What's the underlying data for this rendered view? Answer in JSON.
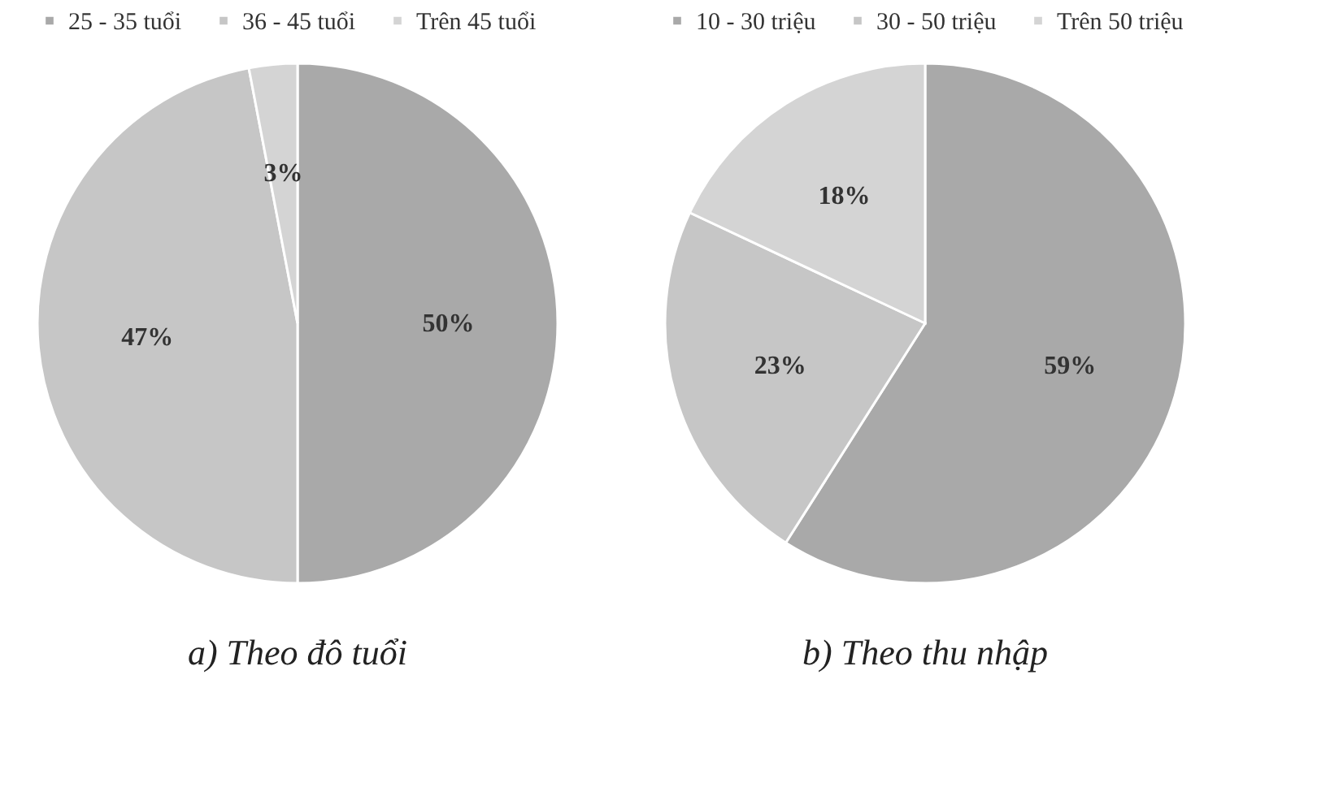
{
  "chart_data": [
    {
      "type": "pie",
      "title": "a) Theo đô tuổi",
      "categories": [
        "25 - 35 tuổi",
        "36 - 45 tuổi",
        "Trên 45 tuổi"
      ],
      "values": [
        50,
        47,
        3
      ],
      "colors": [
        "#a9a9a9",
        "#c6c6c6",
        "#d4d4d4"
      ],
      "value_labels": [
        "50%",
        "47%",
        "3%"
      ],
      "legend": "top"
    },
    {
      "type": "pie",
      "title": "b) Theo thu nhập",
      "categories": [
        "10 - 30 triệu",
        "30 - 50 triệu",
        "Trên 50 triệu"
      ],
      "values": [
        59,
        23,
        18
      ],
      "colors": [
        "#a9a9a9",
        "#c6c6c6",
        "#d4d4d4"
      ],
      "value_labels": [
        "59%",
        "23%",
        "18%"
      ],
      "legend": "top"
    }
  ]
}
